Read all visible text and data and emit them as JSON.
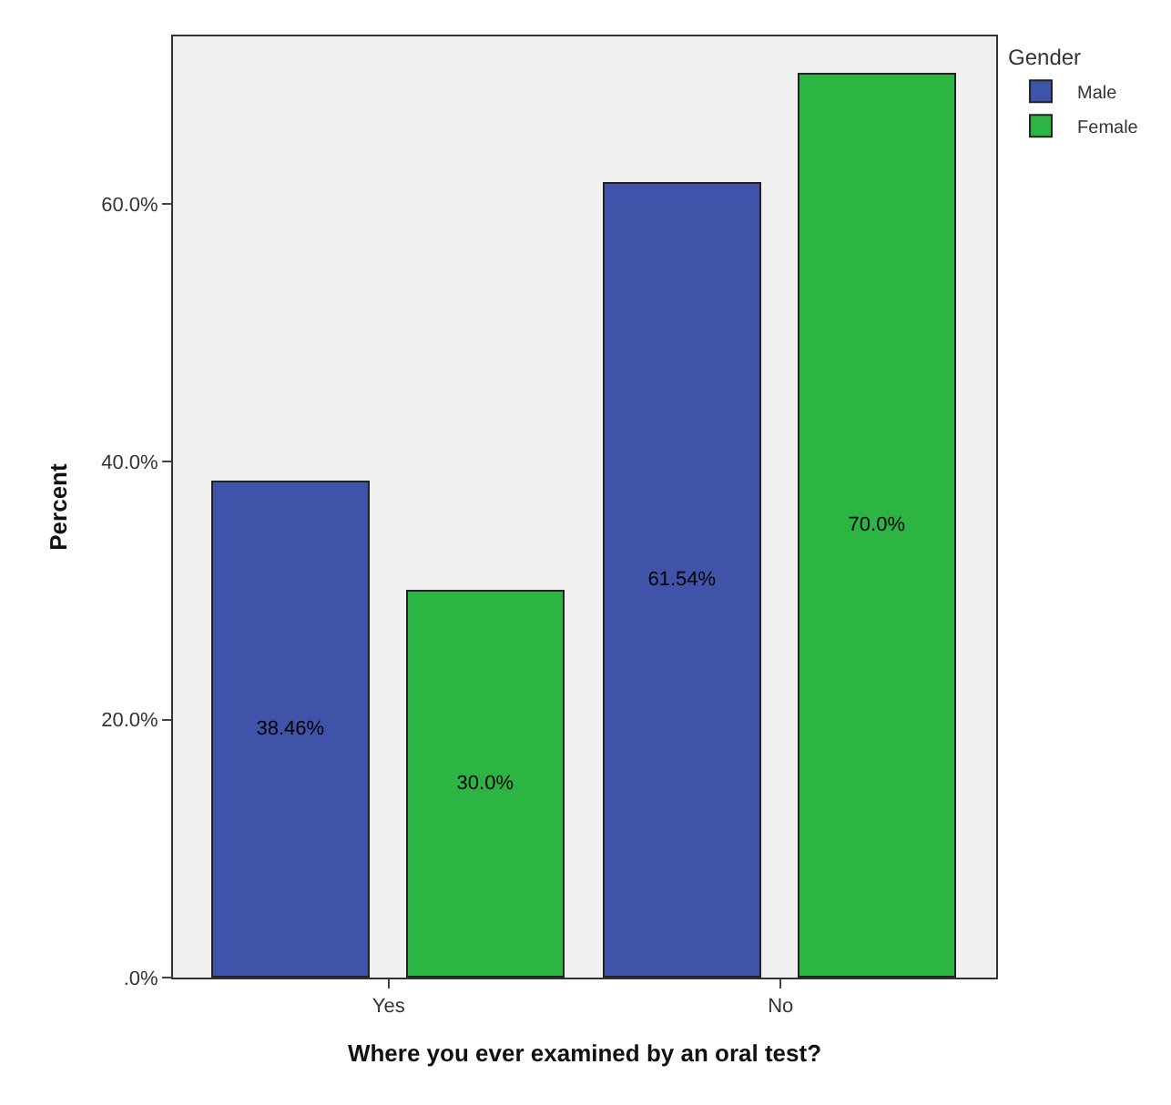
{
  "chart_data": {
    "type": "bar",
    "xlabel": "Where you ever examined by an oral test?",
    "ylabel": "Percent",
    "legend_title": "Gender",
    "categories": [
      "Yes",
      "No"
    ],
    "series": [
      {
        "name": "Male",
        "color": "#3f53a8",
        "values": [
          38.46,
          61.54
        ],
        "value_labels": [
          "38.46%",
          "61.54%"
        ]
      },
      {
        "name": "Female",
        "color": "#2db543",
        "values": [
          30.0,
          70.0
        ],
        "value_labels": [
          "30.0%",
          "70.0%"
        ]
      }
    ],
    "ylim": [
      0,
      73
    ],
    "yticks": [
      {
        "value": 0,
        "label": ".0%"
      },
      {
        "value": 20,
        "label": "20.0%"
      },
      {
        "value": 40,
        "label": "40.0%"
      },
      {
        "value": 60,
        "label": "60.0%"
      }
    ],
    "grid": false,
    "legend": "top right"
  }
}
